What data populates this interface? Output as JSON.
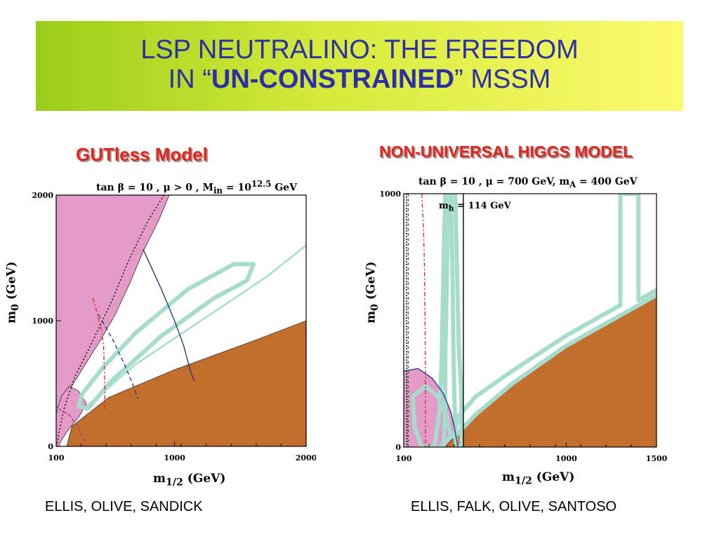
{
  "title": {
    "line1": "LSP NEUTRALINO: THE FREEDOM",
    "line2_prefix": "IN “",
    "line2_bold": "UN-CONSTRAINED",
    "line2_suffix": "” MSSM"
  },
  "colors": {
    "title_text": "#2c2fa8",
    "heading_red": "#e8231b",
    "pink_region": "#e49ac6",
    "brown_region": "#c46e2e",
    "cyan_strip": "#a6dccc",
    "curve_blue": "#2c3a8a",
    "curve_red": "#e0302a",
    "curve_green": "#1d7a2a"
  },
  "left_panel": {
    "heading": "GUTless Model",
    "subtitle": "tan β = 10 ,  μ > 0 , M",
    "subtitle_sub": "in",
    "subtitle_mid": " = 10",
    "subtitle_sup": "12.5",
    "subtitle_tail": " GeV",
    "credit": "ELLIS, OLIVE, SANDICK"
  },
  "right_panel": {
    "heading": "NON-UNIVERSAL HIGGS MODEL",
    "subtitle": "tan β = 10 ,  μ = 700 GeV,  m",
    "subtitle_sub": "A",
    "subtitle_tail": " = 400 GeV",
    "credit": "ELLIS, FALK, OLIVE, SANTOSO"
  },
  "chart_data": [
    {
      "type": "area",
      "xlabel_main": "m",
      "xlabel_sub": "1/2",
      "xlabel_unit": " (GeV)",
      "ylabel_main": "m",
      "ylabel_sub": "0",
      "ylabel_unit": " (GeV)",
      "xlim": [
        100,
        2000
      ],
      "ylim": [
        0,
        2000
      ],
      "xticks": [
        {
          "value": 100,
          "label": "100"
        },
        {
          "value": 1000,
          "label": "1000"
        },
        {
          "value": 2000,
          "label": "2000"
        }
      ],
      "yticks": [
        {
          "value": 0,
          "label": "0"
        },
        {
          "value": 1000,
          "label": "1000"
        },
        {
          "value": 2000,
          "label": "2000"
        }
      ],
      "regions": [
        {
          "name": "pink-upper",
          "color": "#e49ac6",
          "points": [
            [
              100,
              2000
            ],
            [
              960,
              2000
            ],
            [
              880,
              1800
            ],
            [
              760,
              1550
            ],
            [
              660,
              1300
            ],
            [
              550,
              1050
            ],
            [
              440,
              850
            ],
            [
              320,
              650
            ],
            [
              230,
              500
            ],
            [
              170,
              400
            ],
            [
              100,
              300
            ]
          ]
        },
        {
          "name": "pink-lower",
          "color": "#e49ac6",
          "points": [
            [
              100,
              260
            ],
            [
              140,
              400
            ],
            [
              200,
              480
            ],
            [
              270,
              440
            ],
            [
              330,
              340
            ],
            [
              270,
              230
            ],
            [
              190,
              130
            ],
            [
              140,
              50
            ],
            [
              120,
              0
            ],
            [
              100,
              0
            ]
          ]
        },
        {
          "name": "brown",
          "color": "#c46e2e",
          "points": [
            [
              180,
              0
            ],
            [
              2000,
              0
            ],
            [
              2000,
              1000
            ],
            [
              1600,
              840
            ],
            [
              1000,
              610
            ],
            [
              500,
              390
            ],
            [
              220,
              160
            ]
          ]
        }
      ],
      "strips": [
        {
          "name": "coannihilation-ellipse",
          "color": "#a6dccc",
          "points": [
            [
              340,
              300
            ],
            [
              520,
              520
            ],
            [
              900,
              880
            ],
            [
              1300,
              1180
            ],
            [
              1550,
              1320
            ],
            [
              1600,
              1450
            ],
            [
              1450,
              1450
            ],
            [
              1100,
              1250
            ],
            [
              700,
              900
            ],
            [
              450,
              620
            ],
            [
              300,
              420
            ],
            [
              270,
              320
            ]
          ]
        },
        {
          "name": "upper-strip",
          "color": "#a6dccc",
          "points": [
            [
              310,
              300
            ],
            [
              700,
              650
            ],
            [
              1200,
              1000
            ],
            [
              1700,
              1350
            ],
            [
              2000,
              1600
            ]
          ]
        }
      ],
      "curves": [
        {
          "name": "blue-solid",
          "color": "#2c3a8a",
          "dash": "",
          "points": [
            [
              760,
              1570
            ],
            [
              900,
              1250
            ],
            [
              1000,
              1000
            ],
            [
              1070,
              800
            ],
            [
              1120,
              600
            ],
            [
              1150,
              520
            ]
          ]
        },
        {
          "name": "blue-dashed",
          "color": "#2c3a8a",
          "dash": "6,4",
          "points": [
            [
              420,
              1050
            ],
            [
              530,
              850
            ],
            [
              620,
              650
            ],
            [
              680,
              500
            ],
            [
              720,
              380
            ]
          ]
        },
        {
          "name": "red-dashdot",
          "color": "#e0302a",
          "dash": "6,3,2,3",
          "points": [
            [
              380,
              1180
            ],
            [
              440,
              950
            ],
            [
              460,
              800
            ],
            [
              470,
              500
            ],
            [
              470,
              290
            ]
          ]
        },
        {
          "name": "black-dotted",
          "color": "#000000",
          "dash": "2,3",
          "points": [
            [
              920,
              2000
            ],
            [
              800,
              1800
            ],
            [
              660,
              1500
            ],
            [
              520,
              1150
            ],
            [
              360,
              800
            ],
            [
              240,
              550
            ],
            [
              160,
              300
            ],
            [
              120,
              100
            ],
            [
              105,
              0
            ]
          ]
        },
        {
          "name": "magenta-dashed",
          "color": "#b0308a",
          "dash": "5,3",
          "points": [
            [
              120,
              300
            ],
            [
              200,
              250
            ],
            [
              270,
              150
            ],
            [
              330,
              0
            ]
          ]
        }
      ]
    },
    {
      "type": "area",
      "xlabel_main": "m",
      "xlabel_sub": "1/2",
      "xlabel_unit": " (GeV)",
      "ylabel_main": "m",
      "ylabel_sub": "0",
      "ylabel_unit": " (GeV)",
      "xlim": [
        100,
        1500
      ],
      "ylim": [
        0,
        1000
      ],
      "xticks": [
        {
          "value": 100,
          "label": "100"
        },
        {
          "value": 1000,
          "label": "1000"
        },
        {
          "value": 1500,
          "label": "1500"
        }
      ],
      "yticks": [
        {
          "value": 0,
          "label": "0"
        },
        {
          "value": 1000,
          "label": "1000"
        }
      ],
      "annotation": {
        "text": "m",
        "sub": "h",
        "tail": " = 114 GeV"
      },
      "regions": [
        {
          "name": "pink-dome",
          "color": "#e49ac6",
          "points": [
            [
              100,
              300
            ],
            [
              180,
              310
            ],
            [
              260,
              270
            ],
            [
              320,
              210
            ],
            [
              360,
              140
            ],
            [
              380,
              80
            ],
            [
              400,
              0
            ],
            [
              100,
              0
            ]
          ]
        },
        {
          "name": "brown",
          "color": "#c46e2e",
          "points": [
            [
              330,
              0
            ],
            [
              1500,
              0
            ],
            [
              1500,
              600
            ],
            [
              1300,
              520
            ],
            [
              1000,
              400
            ],
            [
              700,
              250
            ],
            [
              500,
              130
            ],
            [
              380,
              40
            ]
          ]
        }
      ],
      "strips": [
        {
          "name": "cyan-left",
          "color": "#a6dccc",
          "points": [
            [
              270,
              0
            ],
            [
              300,
              150
            ],
            [
              310,
              350
            ],
            [
              320,
              700
            ],
            [
              330,
              1000
            ],
            [
              345,
              1000
            ],
            [
              340,
              700
            ],
            [
              330,
              350
            ],
            [
              330,
              150
            ],
            [
              320,
              0
            ]
          ]
        },
        {
          "name": "cyan-mid",
          "color": "#a6dccc",
          "points": [
            [
              360,
              1000
            ],
            [
              370,
              700
            ],
            [
              375,
              400
            ],
            [
              380,
              200
            ],
            [
              390,
              0
            ],
            [
              420,
              0
            ],
            [
              420,
              200
            ],
            [
              405,
              400
            ],
            [
              395,
              700
            ],
            [
              385,
              1000
            ]
          ]
        },
        {
          "name": "cyan-band",
          "color": "#a6dccc",
          "points": [
            [
              380,
              40
            ],
            [
              500,
              130
            ],
            [
              700,
              250
            ],
            [
              1000,
              400
            ],
            [
              1300,
              520
            ],
            [
              1500,
              600
            ],
            [
              1500,
              620
            ],
            [
              1400,
              580
            ],
            [
              1400,
              1000
            ],
            [
              1300,
              1000
            ],
            [
              1300,
              560
            ],
            [
              1000,
              440
            ],
            [
              700,
              300
            ],
            [
              500,
              200
            ],
            [
              400,
              120
            ]
          ]
        },
        {
          "name": "cyan-dome",
          "color": "#a6dccc",
          "points": [
            [
              150,
              200
            ],
            [
              220,
              240
            ],
            [
              290,
              200
            ],
            [
              340,
              120
            ],
            [
              360,
              40
            ],
            [
              300,
              0
            ],
            [
              200,
              0
            ],
            [
              160,
              80
            ]
          ]
        }
      ],
      "curves": [
        {
          "name": "green-dashed",
          "color": "#1d7a2a",
          "dash": "4,3",
          "points": [
            [
              125,
              1000
            ],
            [
              125,
              500
            ],
            [
              125,
              0
            ]
          ]
        },
        {
          "name": "black-dotted",
          "color": "#000000",
          "dash": "2,2",
          "points": [
            [
              115,
              1000
            ],
            [
              115,
              500
            ],
            [
              118,
              0
            ]
          ]
        },
        {
          "name": "red-dashdot",
          "color": "#e0302a",
          "dash": "6,3,2,3",
          "points": [
            [
              200,
              1000
            ],
            [
              210,
              850
            ],
            [
              215,
              700
            ],
            [
              218,
              500
            ],
            [
              220,
              300
            ],
            [
              220,
              0
            ]
          ]
        },
        {
          "name": "black-solid",
          "color": "#000000",
          "dash": "",
          "points": [
            [
              430,
              0
            ],
            [
              430,
              1000
            ]
          ]
        },
        {
          "name": "pink-outline",
          "color": "#2c3a8a",
          "dash": "",
          "points": [
            [
              100,
              300
            ],
            [
              180,
              310
            ],
            [
              260,
              270
            ],
            [
              320,
              210
            ],
            [
              360,
              140
            ],
            [
              380,
              80
            ],
            [
              400,
              0
            ]
          ]
        }
      ]
    }
  ]
}
